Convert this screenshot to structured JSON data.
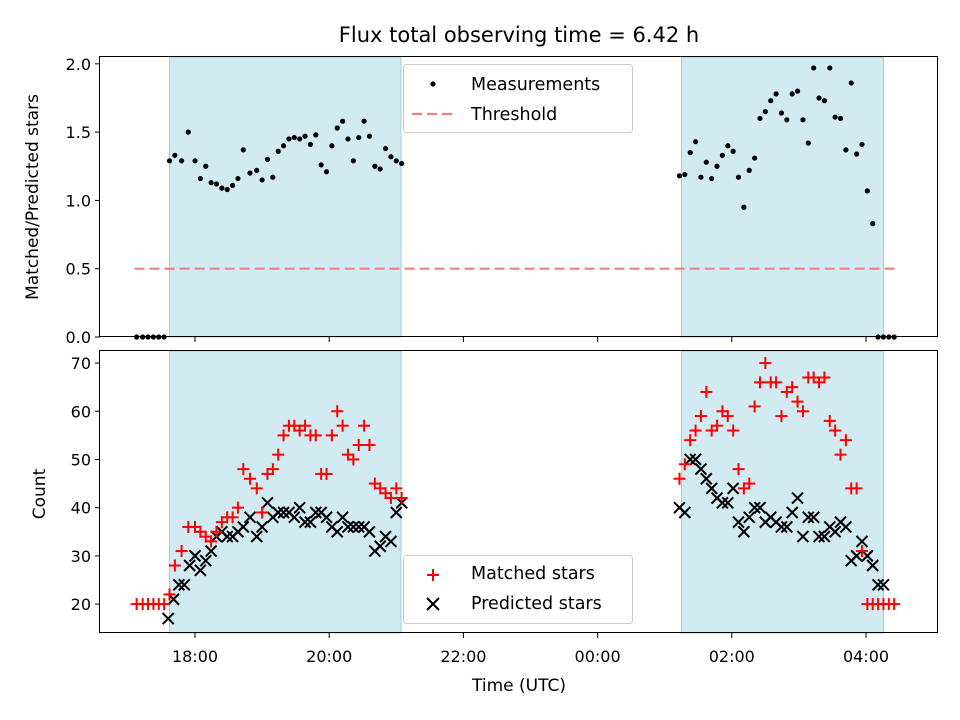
{
  "chart_data": [
    {
      "type": "scatter",
      "title": "Flux total observing time = 6.42 h",
      "xlabel": "",
      "ylabel": "Matched/Predicted stars",
      "ylim": [
        0,
        2.05
      ],
      "yticks": [
        "0.0",
        "0.5",
        "1.0",
        "1.5",
        "2.0"
      ],
      "ytick_values": [
        0,
        0.5,
        1.0,
        1.5,
        2.0
      ],
      "threshold": 0.5,
      "threshold_xrange": [
        17.1,
        4.45
      ],
      "shaded_intervals": [
        [
          17.62,
          21.07
        ],
        [
          1.25,
          4.26
        ]
      ],
      "legend": [
        "Measurements",
        "Threshold"
      ],
      "legend_position": "top-center",
      "series": [
        {
          "name": "Measurements",
          "x": [
            17.13,
            17.22,
            17.3,
            17.38,
            17.46,
            17.54,
            17.62,
            17.7,
            17.8,
            17.9,
            18.0,
            18.08,
            18.16,
            18.24,
            18.32,
            18.4,
            18.48,
            18.56,
            18.64,
            18.72,
            18.82,
            18.92,
            19.0,
            19.08,
            19.16,
            19.24,
            19.32,
            19.4,
            19.48,
            19.56,
            19.64,
            19.72,
            19.8,
            19.88,
            19.96,
            20.04,
            20.12,
            20.2,
            20.28,
            20.36,
            20.44,
            20.52,
            20.6,
            20.68,
            20.76,
            20.84,
            20.92,
            21.0,
            21.08,
            1.22,
            1.3,
            1.38,
            1.46,
            1.54,
            1.62,
            1.7,
            1.78,
            1.86,
            1.94,
            2.02,
            2.1,
            2.18,
            2.26,
            2.34,
            2.42,
            2.5,
            2.58,
            2.66,
            2.74,
            2.82,
            2.9,
            2.98,
            3.06,
            3.14,
            3.22,
            3.3,
            3.38,
            3.46,
            3.54,
            3.62,
            3.7,
            3.78,
            3.86,
            3.94,
            4.02,
            4.1,
            4.18,
            4.26,
            4.34,
            4.42
          ],
          "y": [
            0,
            0,
            0,
            0,
            0,
            0,
            1.29,
            1.33,
            1.29,
            1.5,
            1.29,
            1.16,
            1.25,
            1.13,
            1.12,
            1.09,
            1.08,
            1.11,
            1.16,
            1.37,
            1.2,
            1.22,
            1.15,
            1.3,
            1.17,
            1.36,
            1.4,
            1.45,
            1.46,
            1.45,
            1.47,
            1.41,
            1.48,
            1.26,
            1.21,
            1.4,
            1.53,
            1.58,
            1.45,
            1.29,
            1.46,
            1.58,
            1.47,
            1.25,
            1.23,
            1.38,
            1.32,
            1.29,
            1.27,
            1.18,
            1.19,
            1.35,
            1.43,
            1.17,
            1.28,
            1.16,
            1.25,
            1.33,
            1.4,
            1.36,
            1.17,
            0.95,
            1.22,
            1.31,
            1.6,
            1.65,
            1.73,
            1.78,
            1.64,
            1.59,
            1.78,
            1.8,
            1.59,
            1.42,
            1.97,
            1.75,
            1.73,
            1.97,
            1.61,
            1.6,
            1.37,
            1.86,
            1.34,
            1.41,
            1.07,
            0.83,
            0,
            0,
            0,
            0
          ]
        }
      ]
    },
    {
      "type": "scatter",
      "title": "",
      "xlabel": "Time (UTC)",
      "ylabel": "Count",
      "ylim": [
        14,
        72.5
      ],
      "yticks": [
        "20",
        "30",
        "40",
        "50",
        "60",
        "70"
      ],
      "ytick_values": [
        20,
        30,
        40,
        50,
        60,
        70
      ],
      "xticks": [
        "18:00",
        "20:00",
        "22:00",
        "00:00",
        "02:00",
        "04:00"
      ],
      "shaded_intervals": [
        [
          17.62,
          21.07
        ],
        [
          1.25,
          4.26
        ]
      ],
      "legend": [
        "Matched stars",
        "Predicted stars"
      ],
      "legend_position": "bottom-center",
      "series": [
        {
          "name": "Matched stars",
          "x": [
            17.13,
            17.22,
            17.3,
            17.38,
            17.46,
            17.54,
            17.62,
            17.7,
            17.8,
            17.9,
            18.0,
            18.08,
            18.16,
            18.24,
            18.32,
            18.4,
            18.48,
            18.56,
            18.64,
            18.72,
            18.82,
            18.92,
            19.0,
            19.08,
            19.16,
            19.24,
            19.32,
            19.4,
            19.48,
            19.56,
            19.64,
            19.72,
            19.8,
            19.88,
            19.96,
            20.04,
            20.12,
            20.2,
            20.28,
            20.36,
            20.44,
            20.52,
            20.6,
            20.68,
            20.76,
            20.84,
            20.92,
            21.0,
            21.08,
            1.22,
            1.3,
            1.38,
            1.46,
            1.54,
            1.62,
            1.7,
            1.78,
            1.86,
            1.94,
            2.02,
            2.1,
            2.18,
            2.26,
            2.34,
            2.42,
            2.5,
            2.58,
            2.66,
            2.74,
            2.82,
            2.9,
            2.98,
            3.06,
            3.14,
            3.22,
            3.3,
            3.38,
            3.46,
            3.54,
            3.62,
            3.7,
            3.78,
            3.86,
            3.94,
            4.02,
            4.1,
            4.18,
            4.26,
            4.34,
            4.42
          ],
          "y": [
            20,
            20,
            20,
            20,
            20,
            20,
            22,
            28,
            31,
            36,
            36,
            35,
            34,
            33,
            35,
            37,
            38,
            38,
            40,
            48,
            46,
            44,
            39,
            47,
            48,
            51,
            55,
            57,
            57,
            56,
            57,
            55,
            55,
            47,
            47,
            55,
            60,
            57,
            51,
            50,
            53,
            57,
            53,
            45,
            44,
            43,
            42,
            44,
            42,
            46,
            49,
            54,
            56,
            59,
            64,
            56,
            57,
            60,
            59,
            56,
            48,
            44,
            45,
            61,
            66,
            70,
            66,
            66,
            59,
            64,
            65,
            62,
            60,
            67,
            67,
            66,
            67,
            58,
            56,
            51,
            54,
            44,
            44,
            31,
            20,
            20,
            20,
            20,
            20,
            20
          ],
          "marker": "plus",
          "color": "#ff0000"
        },
        {
          "name": "Predicted stars",
          "x": [
            17.6,
            17.68,
            17.76,
            17.84,
            17.92,
            18.0,
            18.08,
            18.16,
            18.24,
            18.32,
            18.4,
            18.48,
            18.56,
            18.64,
            18.72,
            18.82,
            18.92,
            19.0,
            19.08,
            19.16,
            19.24,
            19.32,
            19.4,
            19.48,
            19.56,
            19.64,
            19.72,
            19.8,
            19.88,
            19.96,
            20.04,
            20.12,
            20.2,
            20.28,
            20.36,
            20.44,
            20.52,
            20.6,
            20.68,
            20.76,
            20.84,
            20.92,
            21.0,
            21.08,
            1.22,
            1.3,
            1.38,
            1.46,
            1.54,
            1.62,
            1.7,
            1.78,
            1.86,
            1.94,
            2.02,
            2.1,
            2.18,
            2.26,
            2.34,
            2.42,
            2.5,
            2.58,
            2.66,
            2.74,
            2.82,
            2.9,
            2.98,
            3.06,
            3.14,
            3.22,
            3.3,
            3.38,
            3.46,
            3.54,
            3.62,
            3.7,
            3.78,
            3.86,
            3.94,
            4.02,
            4.1,
            4.18,
            4.26
          ],
          "y": [
            17,
            21,
            24,
            24,
            28,
            30,
            27,
            29,
            31,
            34,
            35,
            34,
            34,
            35,
            36,
            38,
            34,
            36,
            41,
            38,
            39,
            39,
            39,
            38,
            40,
            37,
            37,
            39,
            39,
            38,
            36,
            35,
            38,
            36,
            36,
            36,
            36,
            35,
            31,
            32,
            34,
            33,
            39,
            41,
            40,
            39,
            50,
            50,
            48,
            46,
            44,
            42,
            41,
            41,
            44,
            37,
            35,
            38,
            40,
            40,
            37,
            38,
            37,
            36,
            36,
            39,
            42,
            34,
            38,
            38,
            34,
            34,
            36,
            35,
            37,
            36,
            29,
            30,
            33,
            30,
            28,
            24,
            24
          ],
          "marker": "x",
          "color": "#000000"
        }
      ]
    }
  ]
}
